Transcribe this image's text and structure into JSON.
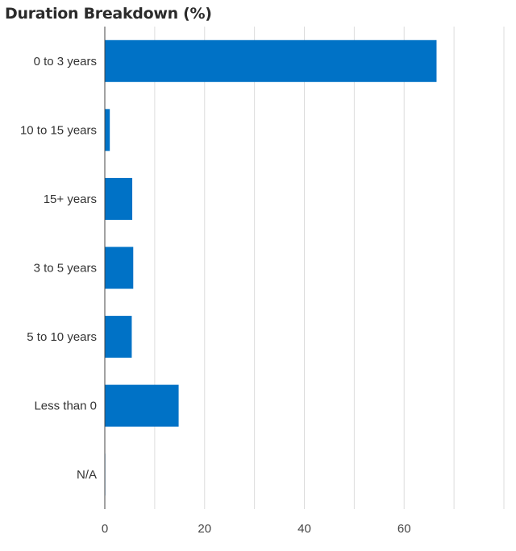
{
  "chart_data": {
    "type": "bar",
    "orientation": "horizontal",
    "title": "Duration Breakdown (%)",
    "categories": [
      "0 to 3 years",
      "10 to 15 years",
      "15+ years",
      "3 to 5 years",
      "5 to 10 years",
      "Less than 0",
      "N/A"
    ],
    "values": [
      66.5,
      1.0,
      5.5,
      5.7,
      5.4,
      14.8,
      0.1
    ],
    "xlim": [
      0,
      80
    ],
    "xticks": [
      0,
      20,
      40,
      60
    ],
    "grid": true,
    "bar_color": "#0072c6",
    "grid_color": "#dddddd"
  }
}
